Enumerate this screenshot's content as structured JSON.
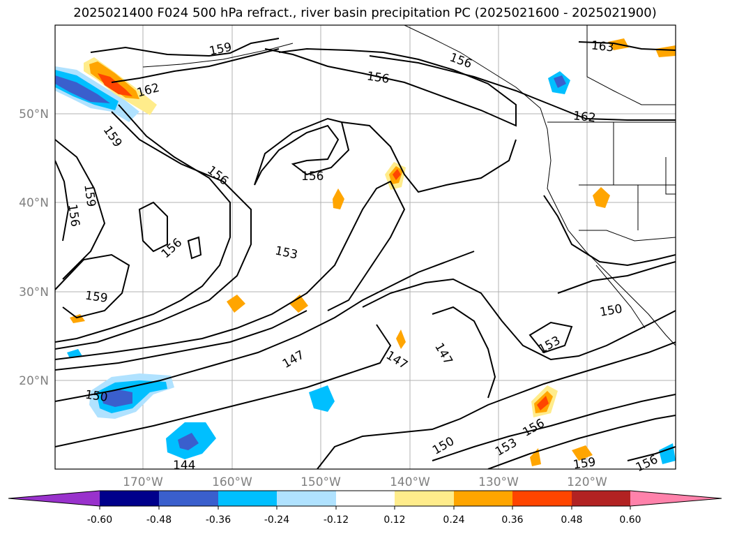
{
  "title": "2025021400 F024 500 hPa refract., river basin precipitation PC (2025021600 - 2025021900)",
  "lat_labels": [
    "50°N",
    "40°N",
    "30°N",
    "20°N"
  ],
  "lon_labels": [
    "170°W",
    "160°W",
    "150°W",
    "140°W",
    "130°W",
    "120°W"
  ],
  "contour_labels": [
    "159",
    "162",
    "159",
    "159",
    "156",
    "156",
    "159",
    "156",
    "153",
    "147",
    "150",
    "144",
    "156",
    "156",
    "147",
    "147",
    "150",
    "153",
    "156",
    "159",
    "156",
    "150",
    "153",
    "162",
    "163",
    "156"
  ],
  "colorbar": {
    "ticks": [
      "-0.60",
      "-0.48",
      "-0.36",
      "-0.24",
      "-0.12",
      "0.12",
      "0.24",
      "0.36",
      "0.48",
      "0.60"
    ],
    "colors": [
      "#9932cc",
      "#00008b",
      "#3a5fcd",
      "#00bfff",
      "#b0e2ff",
      "#ffffff",
      "#ffec8b",
      "#ffa500",
      "#ff4500",
      "#b22222",
      "#ff82ab"
    ]
  },
  "colors": {
    "negative_dark": "#3a5fcd",
    "negative_mid": "#00bfff",
    "negative_light": "#b0e2ff",
    "positive_light": "#ffec8b",
    "positive_mid": "#ffa500",
    "positive_dark": "#ff4500"
  }
}
